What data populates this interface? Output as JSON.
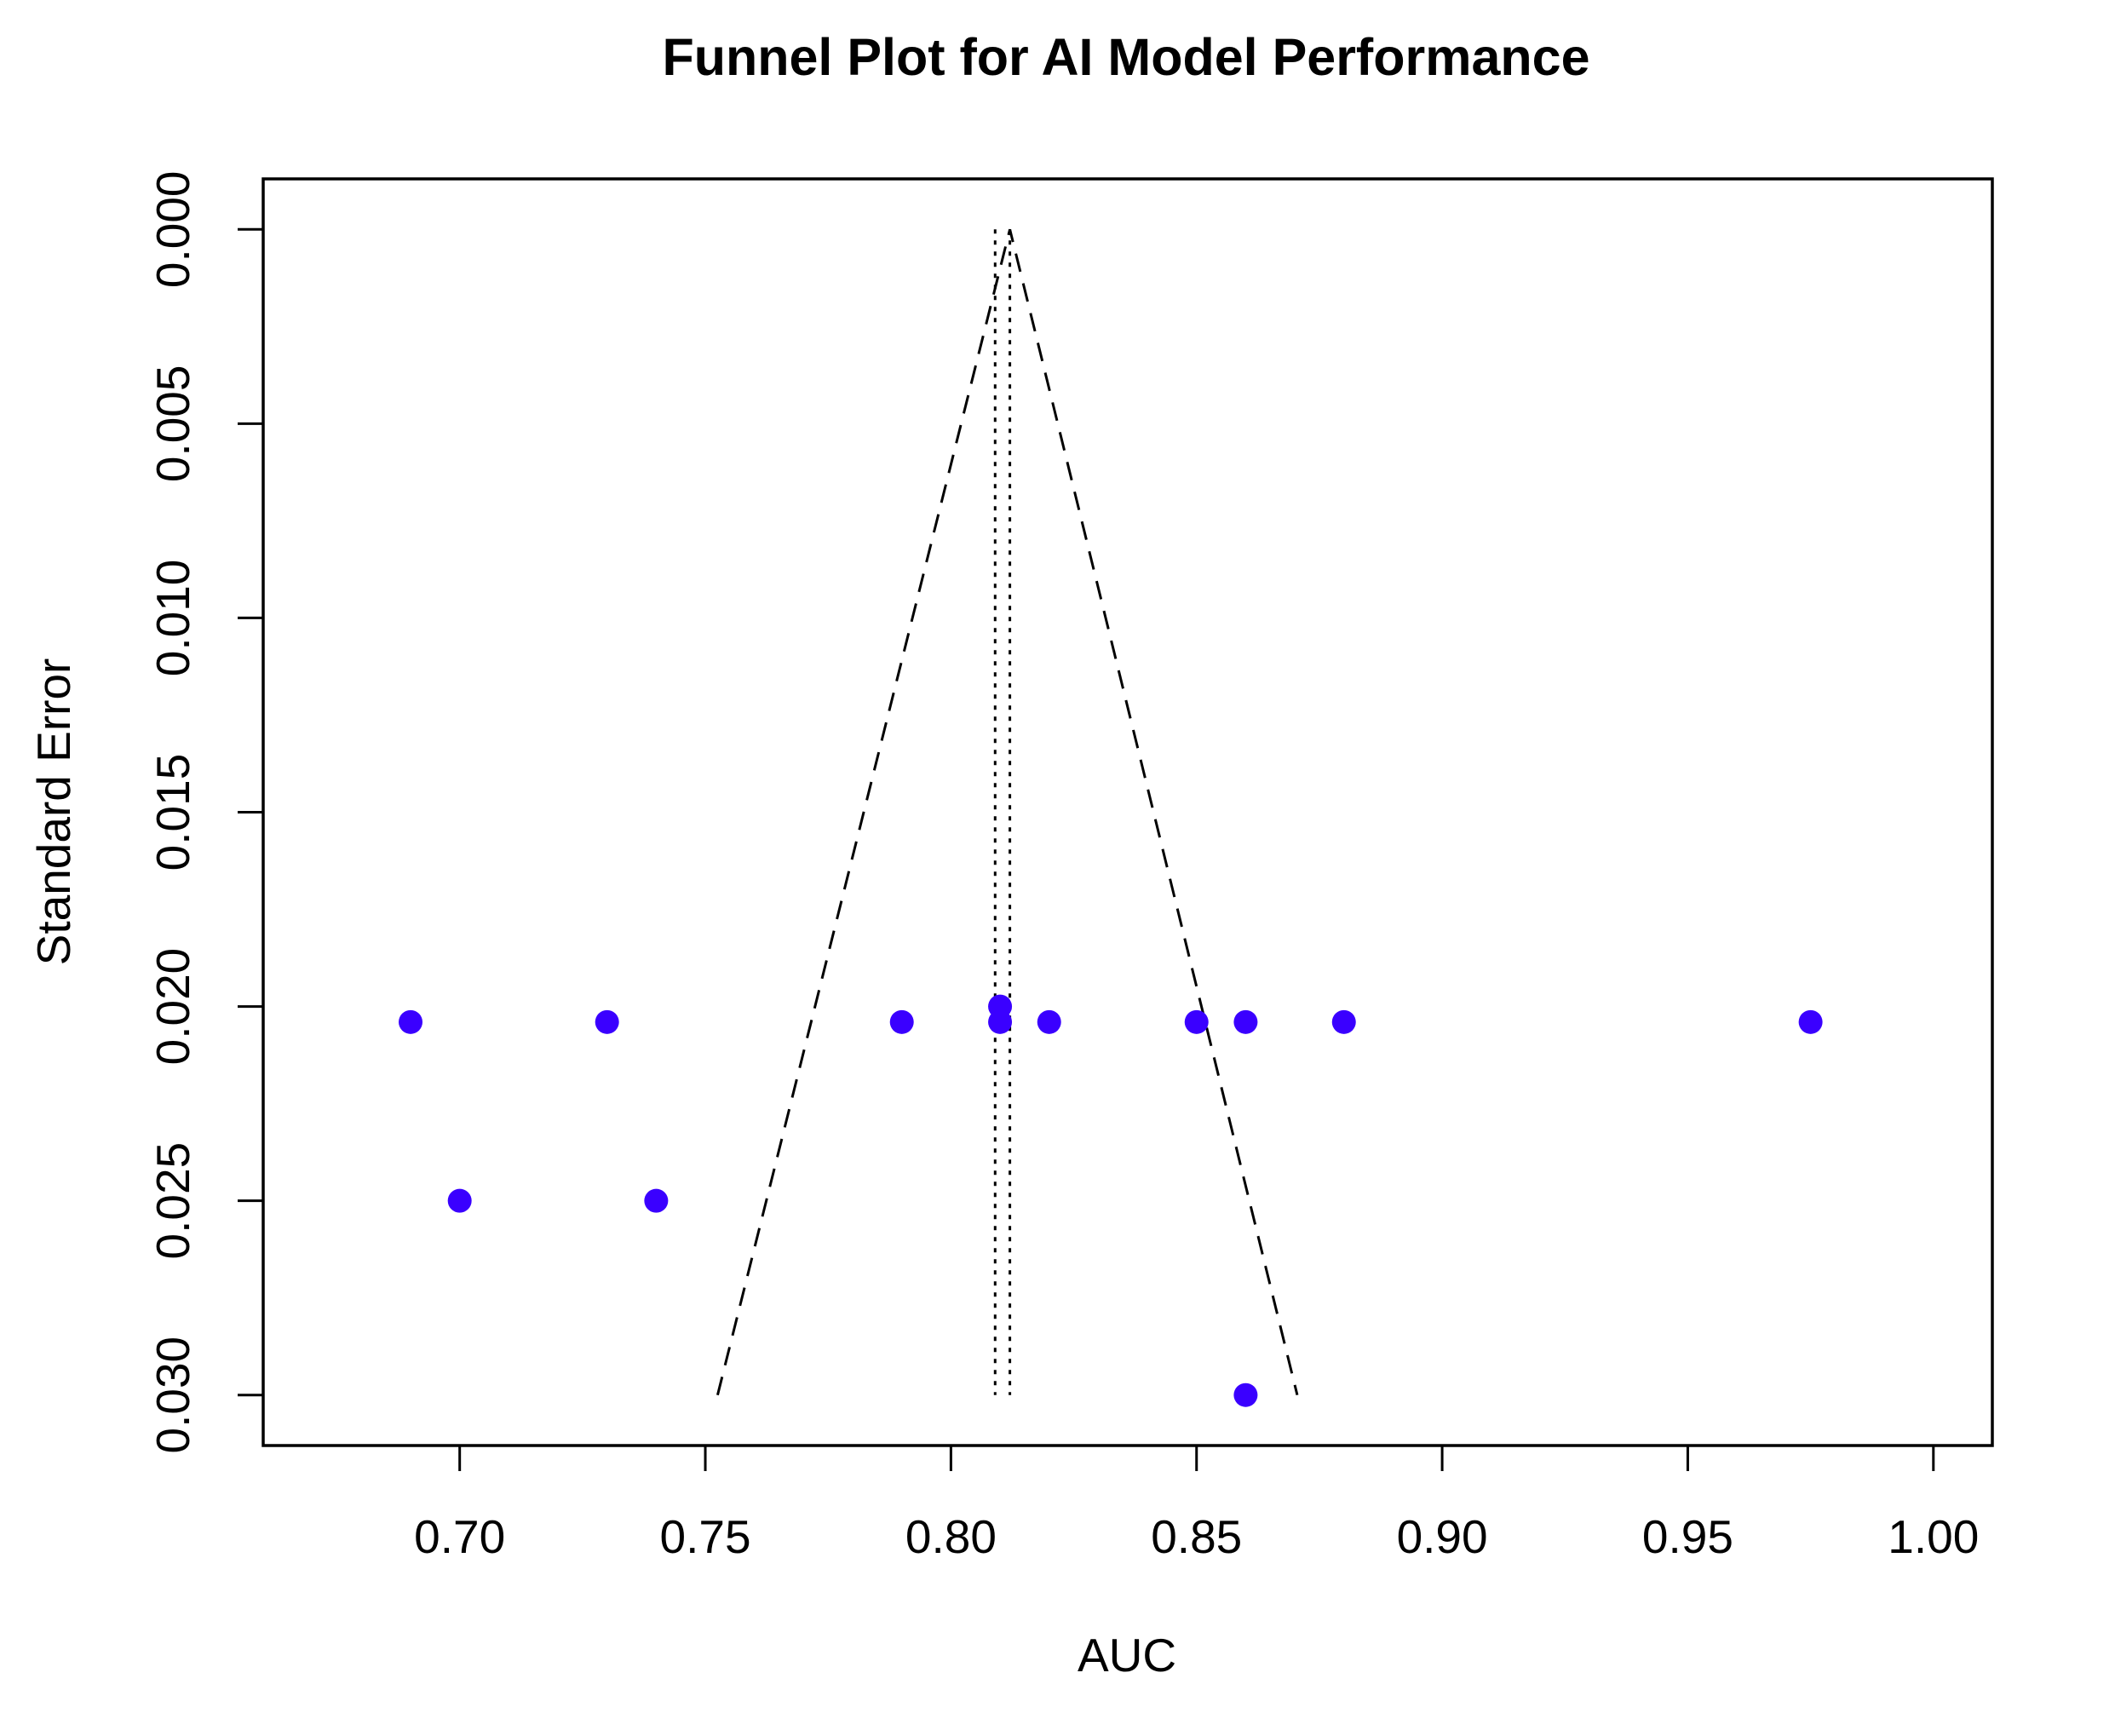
{
  "chart_data": {
    "type": "scatter",
    "title": "Funnel Plot for AI Model Performance",
    "xlabel": "AUC",
    "ylabel": "Standard Error",
    "xlim": [
      0.66,
      1.012
    ],
    "ylim": [
      0.0313,
      -0.0013
    ],
    "y_reversed": true,
    "x_ticks": [
      0.7,
      0.75,
      0.8,
      0.85,
      0.9,
      0.95,
      1.0
    ],
    "x_tick_labels": [
      "0.70",
      "0.75",
      "0.80",
      "0.85",
      "0.90",
      "0.95",
      "1.00"
    ],
    "y_ticks": [
      0.0,
      0.005,
      0.01,
      0.015,
      0.02,
      0.025,
      0.03
    ],
    "y_tick_labels": [
      "0.000",
      "0.005",
      "0.010",
      "0.015",
      "0.020",
      "0.025",
      "0.030"
    ],
    "grid": false,
    "legend": "none",
    "point_color": "#3a00ff",
    "points": [
      {
        "x": 0.69,
        "y": 0.0204
      },
      {
        "x": 0.73,
        "y": 0.0204
      },
      {
        "x": 0.79,
        "y": 0.0204
      },
      {
        "x": 0.81,
        "y": 0.02
      },
      {
        "x": 0.81,
        "y": 0.0204
      },
      {
        "x": 0.82,
        "y": 0.0204
      },
      {
        "x": 0.85,
        "y": 0.0204
      },
      {
        "x": 0.86,
        "y": 0.0204
      },
      {
        "x": 0.88,
        "y": 0.0204
      },
      {
        "x": 0.975,
        "y": 0.0204
      },
      {
        "x": 0.7,
        "y": 0.025
      },
      {
        "x": 0.74,
        "y": 0.025
      },
      {
        "x": 0.86,
        "y": 0.03
      }
    ],
    "funnel": {
      "apex": {
        "x": 0.812,
        "y": 0.0
      },
      "left_base": {
        "x": 0.7525,
        "y": 0.03
      },
      "right_base": {
        "x": 0.8705,
        "y": 0.03
      }
    },
    "reference_lines": [
      {
        "x": 0.809,
        "y_from": 0.0,
        "y_to": 0.03
      },
      {
        "x": 0.812,
        "y_from": 0.0,
        "y_to": 0.03
      }
    ]
  }
}
